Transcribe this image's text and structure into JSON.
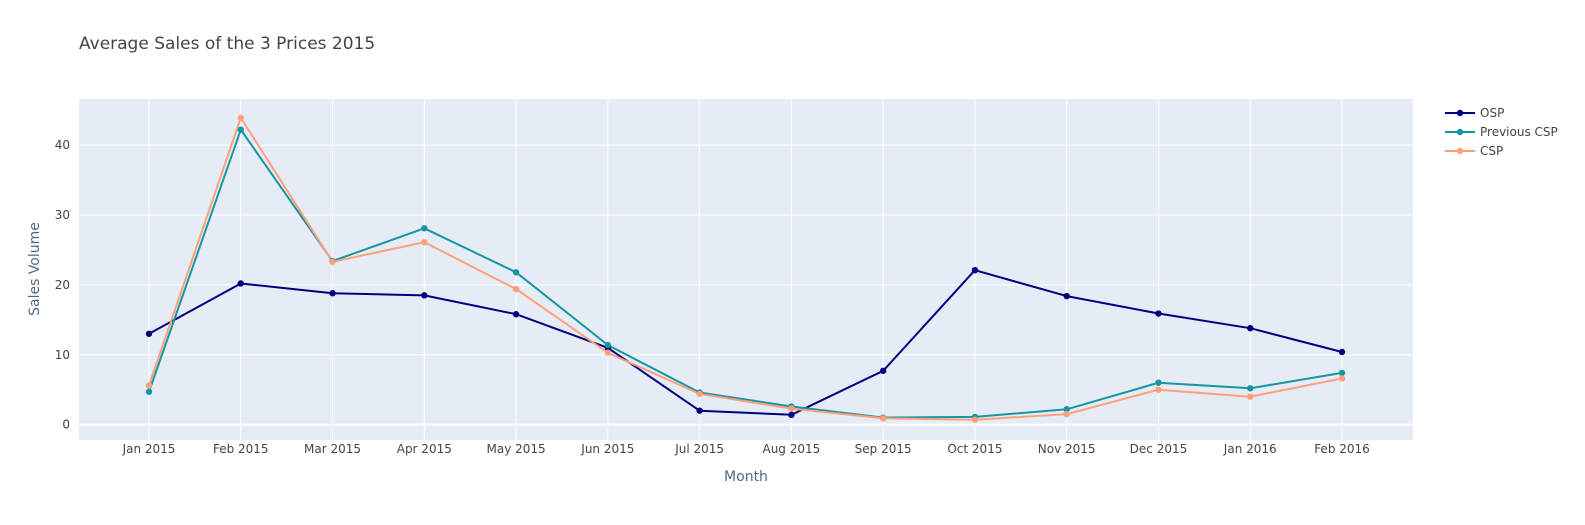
{
  "chart_data": {
    "type": "line",
    "title": "Average Sales of the 3 Prices 2015",
    "xlabel": "Month",
    "ylabel": "Sales Volume",
    "categories": [
      "Jan 2015",
      "Feb 2015",
      "Mar 2015",
      "Apr 2015",
      "May 2015",
      "Jun 2015",
      "Jul 2015",
      "Aug 2015",
      "Sep 2015",
      "Oct 2015",
      "Nov 2015",
      "Dec 2015",
      "Jan 2016",
      "Feb 2016"
    ],
    "x": [
      "2015-01-01",
      "2015-02-01",
      "2015-03-01",
      "2015-04-01",
      "2015-05-01",
      "2015-06-01",
      "2015-07-01",
      "2015-08-01",
      "2015-09-01",
      "2015-10-01",
      "2015-11-01",
      "2015-12-01",
      "2016-01-01",
      "2016-02-01"
    ],
    "ylim": [
      -2.2,
      46.6
    ],
    "yticks": [
      0,
      10,
      20,
      30,
      40
    ],
    "grid": true,
    "legend_position": "top-right",
    "series": [
      {
        "name": "OSP",
        "color": "#000080",
        "values": [
          13.0,
          20.2,
          18.8,
          18.5,
          15.8,
          11.0,
          2.0,
          1.4,
          7.7,
          22.1,
          18.4,
          15.9,
          13.8,
          10.4
        ]
      },
      {
        "name": "Previous CSP",
        "color": "#1696A3",
        "values": [
          4.7,
          42.2,
          23.4,
          28.1,
          21.8,
          11.4,
          4.6,
          2.6,
          1.0,
          1.1,
          2.2,
          6.0,
          5.2,
          7.4
        ]
      },
      {
        "name": "CSP",
        "color": "#FFA07A",
        "values": [
          5.6,
          43.9,
          23.3,
          26.1,
          19.4,
          10.3,
          4.4,
          2.3,
          0.9,
          0.7,
          1.5,
          5.0,
          4.0,
          6.6
        ]
      }
    ]
  }
}
